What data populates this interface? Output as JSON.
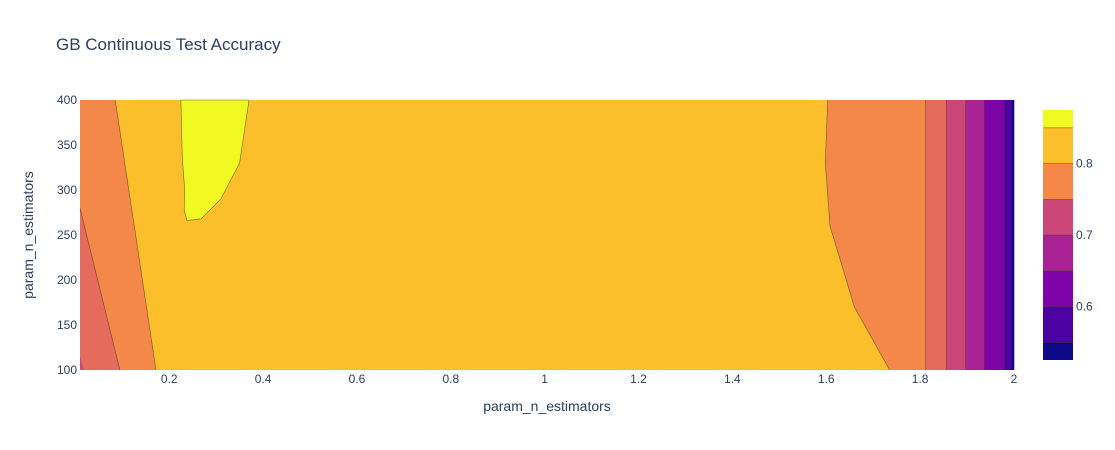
{
  "chart_data": {
    "type": "contour",
    "title": "GB Continuous Test Accuracy",
    "xlabel": "param_n_estimators",
    "ylabel": "param_n_estimators",
    "xlim": [
      0.01,
      2.0
    ],
    "ylim": [
      100,
      400
    ],
    "x_ticks": [
      0.2,
      0.4,
      0.6,
      0.8,
      1,
      1.2,
      1.4,
      1.6,
      1.8,
      2
    ],
    "y_ticks": [
      100,
      150,
      200,
      250,
      300,
      350,
      400
    ],
    "colorbar": {
      "range": [
        0.525,
        0.875
      ],
      "ticks": [
        0.6,
        0.7,
        0.8
      ],
      "levels": [
        0.55,
        0.6,
        0.65,
        0.7,
        0.75,
        0.8,
        0.85
      ],
      "colors": [
        "#0d0887",
        "#4c02a1",
        "#7e03a8",
        "#a92395",
        "#cc4778",
        "#e56b5d",
        "#f48849",
        "#fbbf2c",
        "#f0f921"
      ]
    },
    "regions": [
      {
        "label": "0.8-0.85",
        "color": "#fbbf2c",
        "x_span": [
          0.17,
          1.82
        ]
      },
      {
        "label": "0.85-0.9",
        "color": "#f0f921",
        "x_span": [
          0.23,
          0.37
        ],
        "y_span": [
          265,
          400
        ]
      },
      {
        "label": "0.75-0.8",
        "color": "#f48849",
        "x_span": [
          0.01,
          0.17
        ]
      },
      {
        "label": "0.75-0.8",
        "color": "#f48849",
        "x_span": [
          1.6,
          1.82
        ]
      },
      {
        "label": "0.7-0.75",
        "color": "#e56b5d",
        "x_span": [
          0.01,
          0.1
        ]
      },
      {
        "label": "0.7-0.75",
        "color": "#e56b5d",
        "x_span": [
          1.82,
          1.86
        ]
      },
      {
        "label": "0.65-0.7",
        "color": "#cc4778",
        "x_span": [
          1.86,
          1.9
        ]
      },
      {
        "label": "0.6-0.65",
        "color": "#a92395",
        "x_span": [
          1.9,
          1.94
        ]
      },
      {
        "label": "0.55-0.6",
        "color": "#7e03a8",
        "x_span": [
          1.94,
          1.98
        ]
      },
      {
        "label": "0.5-0.55",
        "color": "#4c02a1",
        "x_span": [
          1.98,
          2.0
        ]
      }
    ]
  }
}
